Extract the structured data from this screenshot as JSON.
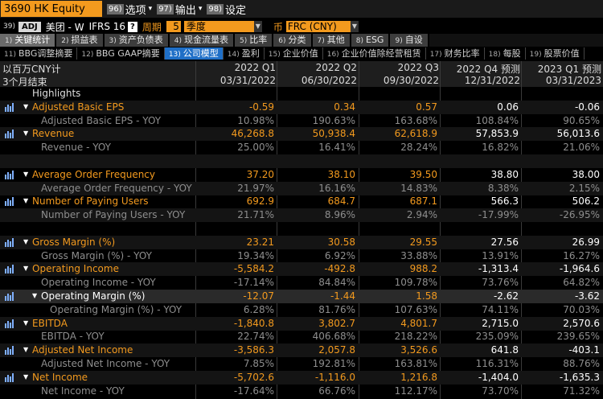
{
  "title": {
    "ticker": "3690 HK Equity",
    "menu": [
      {
        "num": "96)",
        "label": "选项"
      },
      {
        "num": "97)",
        "label": "输出"
      },
      {
        "num": "98)",
        "label": "设定"
      }
    ]
  },
  "filters": {
    "row_num": "39)",
    "adj": "ADJ",
    "company": "美团 - W",
    "standard": "IFRS 16",
    "help": "?",
    "period_label": "周期",
    "period_value": "5",
    "period_type": "季度",
    "currency_label": "币",
    "currency_value": "FRC (CNY)"
  },
  "tabs_primary": [
    {
      "num": "1)",
      "label": "关键统计",
      "active": true
    },
    {
      "num": "2)",
      "label": "损益表",
      "active": false
    },
    {
      "num": "3)",
      "label": "资产负债表",
      "active": false
    },
    {
      "num": "4)",
      "label": "现金流量表",
      "active": false
    },
    {
      "num": "5)",
      "label": "比率",
      "active": false
    },
    {
      "num": "6)",
      "label": "分类",
      "active": false
    },
    {
      "num": "7)",
      "label": "其他",
      "active": false
    },
    {
      "num": "8)",
      "label": "ESG",
      "active": false
    },
    {
      "num": "9)",
      "label": "自设",
      "active": false
    }
  ],
  "tabs_secondary": [
    {
      "num": "11)",
      "label": "BBG调整摘要",
      "active": false
    },
    {
      "num": "12)",
      "label": "BBG GAAP摘要",
      "active": false
    },
    {
      "num": "13)",
      "label": "公司模型",
      "active": true
    },
    {
      "num": "14)",
      "label": "盈利",
      "active": false
    },
    {
      "num": "15)",
      "label": "企业价值",
      "active": false
    },
    {
      "num": "16)",
      "label": "企业价值除经营租赁",
      "active": false
    },
    {
      "num": "17)",
      "label": "财务比率",
      "active": false
    },
    {
      "num": "18)",
      "label": "每股",
      "active": false
    },
    {
      "num": "19)",
      "label": "股票价值",
      "active": false
    }
  ],
  "grid": {
    "unit_label": "以百万CNY计",
    "period_label": "3个月结束",
    "columns": [
      {
        "period": "2022 Q1",
        "date": "03/31/2022"
      },
      {
        "period": "2022 Q2",
        "date": "06/30/2022"
      },
      {
        "period": "2022 Q3",
        "date": "09/30/2022"
      },
      {
        "period": "2022 Q4 预测",
        "date": "12/31/2022"
      },
      {
        "period": "2023 Q1 预测",
        "date": "03/31/2023"
      }
    ],
    "rows": [
      {
        "kind": "head",
        "indent": 0,
        "name": "Highlights",
        "values": []
      },
      {
        "kind": "main",
        "indent": 0,
        "tri": "▼",
        "name": "Adjusted Basic EPS",
        "values": [
          "-0.59",
          "0.34",
          "0.57",
          "0.06",
          "-0.06"
        ]
      },
      {
        "kind": "sub",
        "indent": 1,
        "name": "Adjusted Basic EPS - YOY",
        "values": [
          "10.98%",
          "190.63%",
          "163.68%",
          "108.84%",
          "90.65%"
        ]
      },
      {
        "kind": "main",
        "indent": 0,
        "tri": "▼",
        "name": "Revenue",
        "values": [
          "46,268.8",
          "50,938.4",
          "62,618.9",
          "57,853.9",
          "56,013.6"
        ]
      },
      {
        "kind": "sub",
        "indent": 1,
        "name": "Revenue - YOY",
        "values": [
          "25.00%",
          "16.41%",
          "28.24%",
          "16.82%",
          "21.06%"
        ]
      },
      {
        "kind": "blank",
        "indent": 0,
        "name": "",
        "values": []
      },
      {
        "kind": "main",
        "indent": 0,
        "tri": "▼",
        "name": "Average Order Frequency",
        "values": [
          "37.20",
          "38.10",
          "39.50",
          "38.80",
          "38.00"
        ]
      },
      {
        "kind": "sub",
        "indent": 1,
        "name": "Average Order Frequency - YOY",
        "values": [
          "21.97%",
          "16.16%",
          "14.83%",
          "8.38%",
          "2.15%"
        ]
      },
      {
        "kind": "main",
        "indent": 0,
        "tri": "▼",
        "name": "Number of Paying Users",
        "values": [
          "692.9",
          "684.7",
          "687.1",
          "566.3",
          "506.2"
        ]
      },
      {
        "kind": "sub",
        "indent": 1,
        "name": "Number of Paying Users - YOY",
        "values": [
          "21.71%",
          "8.96%",
          "2.94%",
          "-17.99%",
          "-26.95%"
        ]
      },
      {
        "kind": "blank",
        "indent": 0,
        "name": "",
        "values": []
      },
      {
        "kind": "main",
        "indent": 0,
        "tri": "▼",
        "name": "Gross Margin (%)",
        "values": [
          "23.21",
          "30.58",
          "29.55",
          "27.56",
          "26.99"
        ]
      },
      {
        "kind": "sub",
        "indent": 1,
        "name": "Gross Margin (%) - YOY",
        "values": [
          "19.34%",
          "6.92%",
          "33.88%",
          "13.91%",
          "16.27%"
        ]
      },
      {
        "kind": "main",
        "indent": 0,
        "tri": "▼",
        "name": "Operating Income",
        "values": [
          "-5,584.2",
          "-492.8",
          "988.2",
          "-1,313.4",
          "-1,964.6"
        ]
      },
      {
        "kind": "sub",
        "indent": 1,
        "name": "Operating Income - YOY",
        "values": [
          "-17.14%",
          "84.84%",
          "109.78%",
          "73.76%",
          "64.82%"
        ]
      },
      {
        "kind": "sel",
        "indent": 1,
        "tri": "▼",
        "name": "Operating Margin (%)",
        "values": [
          "-12.07",
          "-1.44",
          "1.58",
          "-2.62",
          "-3.62"
        ]
      },
      {
        "kind": "sub",
        "indent": 2,
        "name": "Operating Margin (%) - YOY",
        "values": [
          "6.28%",
          "81.76%",
          "107.63%",
          "74.11%",
          "70.03%"
        ]
      },
      {
        "kind": "main",
        "indent": 0,
        "tri": "▼",
        "name": "EBITDA",
        "values": [
          "-1,840.8",
          "3,802.7",
          "4,801.7",
          "2,715.0",
          "2,570.6"
        ]
      },
      {
        "kind": "sub",
        "indent": 1,
        "name": "EBITDA - YOY",
        "values": [
          "22.74%",
          "406.68%",
          "218.22%",
          "235.09%",
          "239.65%"
        ]
      },
      {
        "kind": "main",
        "indent": 0,
        "tri": "▼",
        "name": "Adjusted Net Income",
        "values": [
          "-3,586.3",
          "2,057.8",
          "3,526.6",
          "641.8",
          "-403.1"
        ]
      },
      {
        "kind": "sub",
        "indent": 1,
        "name": "Adjusted Net Income - YOY",
        "values": [
          "7.85%",
          "192.81%",
          "163.81%",
          "116.31%",
          "88.76%"
        ]
      },
      {
        "kind": "main",
        "indent": 0,
        "tri": "▼",
        "name": "Net Income",
        "values": [
          "-5,702.6",
          "-1,116.0",
          "1,216.8",
          "-1,404.0",
          "-1,635.3"
        ]
      },
      {
        "kind": "sub",
        "indent": 1,
        "name": "Net Income - YOY",
        "values": [
          "-17.64%",
          "66.76%",
          "112.17%",
          "73.70%",
          "71.32%"
        ]
      }
    ]
  },
  "icons": {
    "chart": "bar-chart-icon",
    "collapse": "triangle-down-icon"
  },
  "colors": {
    "accent": "#f39a1e",
    "active_tab": "#1f6fc7",
    "subrow_text": "#8e8e8e"
  }
}
